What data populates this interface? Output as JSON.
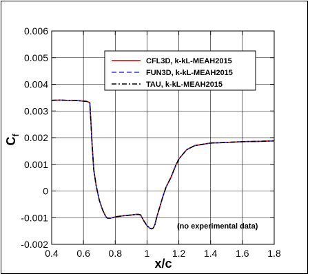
{
  "chart_data": {
    "type": "line",
    "xlabel": "x/c",
    "ylabel_main": "C",
    "ylabel_sub": "f",
    "xlim": [
      0.4,
      1.8
    ],
    "ylim": [
      -0.002,
      0.006
    ],
    "xticks": [
      0.4,
      0.6,
      0.8,
      1,
      1.2,
      1.4,
      1.6,
      1.8
    ],
    "yticks": [
      -0.002,
      -0.001,
      0,
      0.001,
      0.002,
      0.003,
      0.004,
      0.005,
      0.006
    ],
    "xtick_labels": [
      "0.4",
      "0.6",
      "0.8",
      "1",
      "1.2",
      "1.4",
      "1.6",
      "1.8"
    ],
    "ytick_labels": [
      "-0.002",
      "-0.001",
      "0",
      "0.001",
      "0.002",
      "0.003",
      "0.004",
      "0.005",
      "0.006"
    ],
    "grid": true,
    "legend_position": "top-right",
    "annotation": "(no experimental data)",
    "series": [
      {
        "name": "CFL3D, k-kL-MEAH2015",
        "color": "#cc0000",
        "dash": "solid"
      },
      {
        "name": "FUN3D, k-kL-MEAH2015",
        "color": "#3333ff",
        "dash": "dashed"
      },
      {
        "name": "TAU, k-kL-MEAH2015",
        "color": "#000000",
        "dash": "dashdot"
      }
    ],
    "x": [
      0.4,
      0.45,
      0.5,
      0.55,
      0.6,
      0.62,
      0.63,
      0.64,
      0.645,
      0.655,
      0.665,
      0.68,
      0.7,
      0.72,
      0.74,
      0.75,
      0.77,
      0.8,
      0.85,
      0.9,
      0.93,
      0.95,
      0.96,
      0.98,
      1.0,
      1.02,
      1.03,
      1.04,
      1.05,
      1.06,
      1.08,
      1.1,
      1.12,
      1.15,
      1.18,
      1.2,
      1.25,
      1.3,
      1.35,
      1.4,
      1.5,
      1.6,
      1.7,
      1.8
    ],
    "y": [
      0.0034,
      0.00341,
      0.0034,
      0.0034,
      0.00337,
      0.00336,
      0.00334,
      0.0033,
      0.0028,
      0.0017,
      0.0008,
      0.0002,
      -0.00035,
      -0.0007,
      -0.00095,
      -0.00102,
      -0.00102,
      -0.00097,
      -0.00093,
      -0.0009,
      -0.00088,
      -0.00088,
      -0.0009,
      -0.00112,
      -0.0013,
      -0.0014,
      -0.00142,
      -0.00138,
      -0.00125,
      -0.001,
      -0.0006,
      -0.0002,
      0.00015,
      0.0005,
      0.00095,
      0.0012,
      0.00155,
      0.0017,
      0.00175,
      0.0018,
      0.00182,
      0.00185,
      0.00186,
      0.00188
    ]
  }
}
